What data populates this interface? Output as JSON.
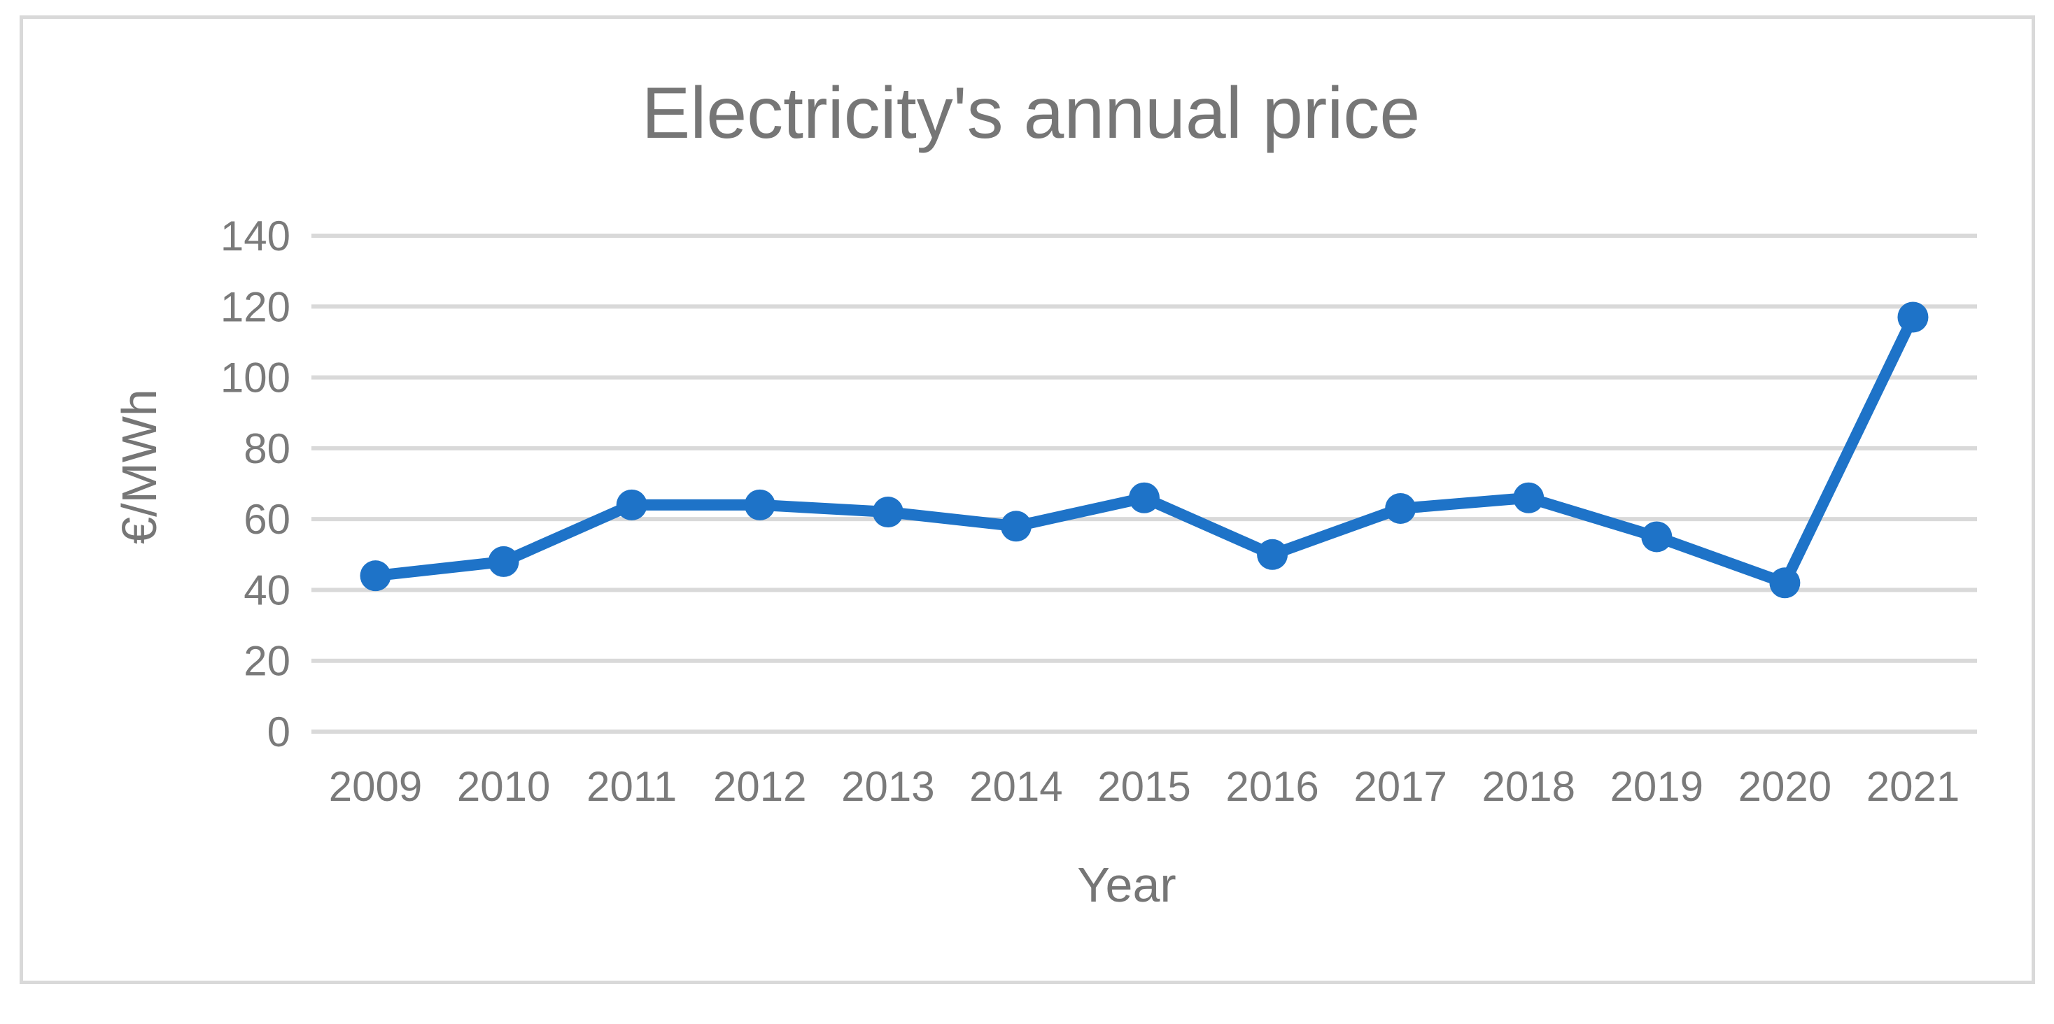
{
  "chart_data": {
    "type": "line",
    "title": "Electricity's annual price",
    "xlabel": "Year",
    "ylabel": "€/MWh",
    "categories": [
      "2009",
      "2010",
      "2011",
      "2012",
      "2013",
      "2014",
      "2015",
      "2016",
      "2017",
      "2018",
      "2019",
      "2020",
      "2021"
    ],
    "series": [
      {
        "values": [
          44,
          48,
          64,
          64,
          62,
          58,
          66,
          50,
          63,
          66,
          55,
          42,
          117
        ],
        "color": "#1e73c8"
      }
    ],
    "ylim": [
      0,
      140
    ],
    "yticks": [
      "0",
      "20",
      "40",
      "60",
      "80",
      "100",
      "120",
      "140"
    ],
    "grid": true,
    "gridline_color": "#d9d9d9",
    "legend": "none"
  }
}
